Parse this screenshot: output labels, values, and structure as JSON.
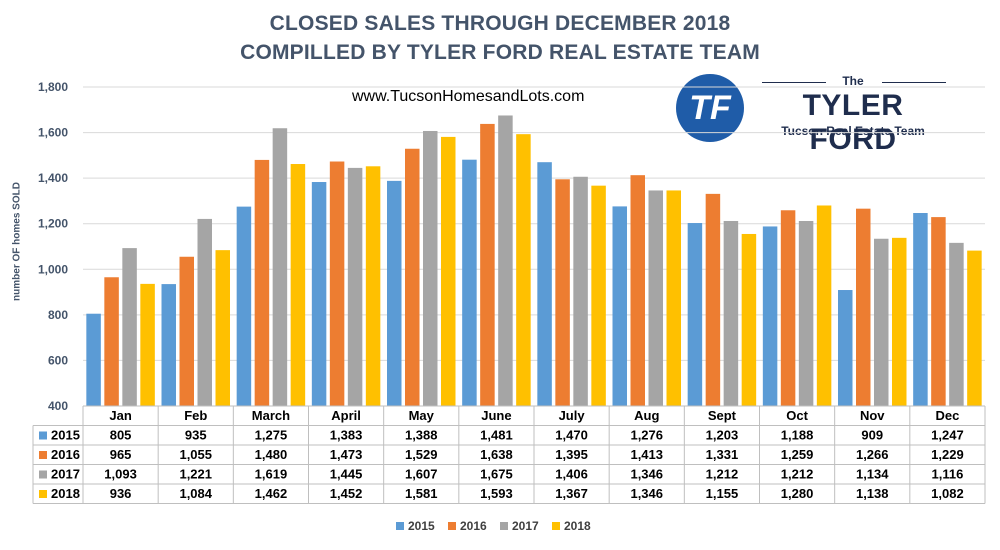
{
  "header": {
    "title_line1": "CLOSED SALES THROUGH DECEMBER 2018",
    "title_line2": "COMPILLED BY TYLER FORD REAL ESTATE TEAM",
    "website": "www.TucsonHomesandLots.com"
  },
  "logo": {
    "monogram": "TF",
    "the": "The",
    "name": "TYLER FORD",
    "tagline": "Tucson Real Estate Team"
  },
  "chart_data": {
    "type": "bar",
    "title": "CLOSED SALES THROUGH DECEMBER 2018",
    "ylabel": "number OF homes SOLD",
    "xlabel": "",
    "ylim": [
      400,
      1800
    ],
    "yticks": [
      400,
      600,
      800,
      1000,
      1200,
      1400,
      1600,
      1800
    ],
    "ytick_labels": [
      "400",
      "600",
      "800",
      "1,000",
      "1,200",
      "1,400",
      "1,600",
      "1,800"
    ],
    "grid": true,
    "legend_position": "bottom",
    "categories": [
      "Jan",
      "Feb",
      "March",
      "April",
      "May",
      "June",
      "July",
      "Aug",
      "Sept",
      "Oct",
      "Nov",
      "Dec"
    ],
    "series": [
      {
        "name": "2015",
        "color": "#5b9bd5",
        "values": [
          805,
          935,
          1275,
          1383,
          1388,
          1481,
          1470,
          1276,
          1203,
          1188,
          909,
          1247
        ],
        "labels": [
          "805",
          "935",
          "1,275",
          "1,383",
          "1,388",
          "1,481",
          "1,470",
          "1,276",
          "1,203",
          "1,188",
          "909",
          "1,247"
        ]
      },
      {
        "name": "2016",
        "color": "#ed7d31",
        "values": [
          965,
          1055,
          1480,
          1473,
          1529,
          1638,
          1395,
          1413,
          1331,
          1259,
          1266,
          1229
        ],
        "labels": [
          "965",
          "1,055",
          "1,480",
          "1,473",
          "1,529",
          "1,638",
          "1,395",
          "1,413",
          "1,331",
          "1,259",
          "1,266",
          "1,229"
        ]
      },
      {
        "name": "2017",
        "color": "#a5a5a5",
        "values": [
          1093,
          1221,
          1619,
          1445,
          1607,
          1675,
          1406,
          1346,
          1212,
          1212,
          1134,
          1116
        ],
        "labels": [
          "1,093",
          "1,221",
          "1,619",
          "1,445",
          "1,607",
          "1,675",
          "1,406",
          "1,346",
          "1,212",
          "1,212",
          "1,134",
          "1,116"
        ]
      },
      {
        "name": "2018",
        "color": "#ffc000",
        "values": [
          936,
          1084,
          1462,
          1452,
          1581,
          1593,
          1367,
          1346,
          1155,
          1280,
          1138,
          1082
        ],
        "labels": [
          "936",
          "1,084",
          "1,462",
          "1,452",
          "1,581",
          "1,593",
          "1,367",
          "1,346",
          "1,155",
          "1,280",
          "1,138",
          "1,082"
        ]
      }
    ]
  }
}
